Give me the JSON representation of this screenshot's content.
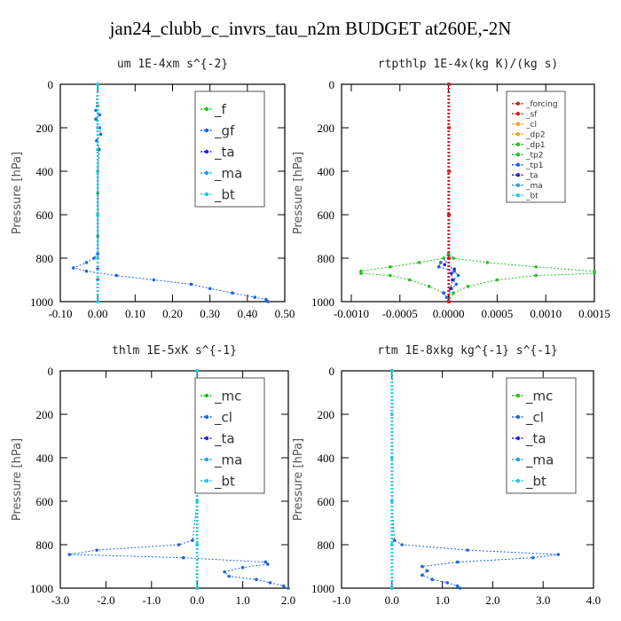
{
  "title": "jan24_clubb_c_invrs_tau_n2m  BUDGET at260E,-2N",
  "colors": {
    "green": "#22c022",
    "blue": "#1e64e0",
    "red": "#d42020",
    "cyan": "#22c8e6",
    "orange": "#f0a020"
  },
  "chart_data": [
    {
      "type": "line",
      "title": "um  1E-4xm s^{-2}",
      "ylabel": "Pressure [hPa]",
      "xlim": [
        -0.1,
        0.5
      ],
      "ylim": [
        1000,
        0
      ],
      "xticks": [
        "-0.10",
        "0.00",
        "0.10",
        "0.20",
        "0.30",
        "0.40",
        "0.50"
      ],
      "xtick_values": [
        -0.1,
        0.0,
        0.1,
        0.2,
        0.3,
        0.4,
        0.5
      ],
      "yticks": [
        "0",
        "200",
        "400",
        "600",
        "800",
        "1000"
      ],
      "ytick_values": [
        0,
        200,
        400,
        600,
        800,
        1000
      ],
      "legend": {
        "labels": [
          "_f",
          "_gf",
          "_ta",
          "_ma",
          "_bt"
        ],
        "colors": [
          "#22c022",
          "#1e64e0",
          "#2222dd",
          "#22a0e0",
          "#22c8e6"
        ],
        "position": "top-right",
        "font": 15
      },
      "series": [
        {
          "name": "_f",
          "color": "#22c022",
          "y": [
            0,
            100,
            200,
            300,
            400,
            500,
            600,
            700,
            800,
            900,
            1000
          ],
          "x": [
            0,
            0,
            0,
            0,
            0,
            0,
            0,
            0,
            0,
            0,
            0
          ]
        },
        {
          "name": "_gf",
          "color": "#1e64e0",
          "y": [
            0,
            120,
            140,
            160,
            200,
            230,
            260,
            300,
            400,
            600,
            780,
            800,
            820,
            845,
            860,
            880,
            900,
            920,
            940,
            960,
            980,
            990,
            1000
          ],
          "x": [
            0,
            -0.005,
            0.005,
            -0.005,
            0.005,
            0.008,
            -0.003,
            0.004,
            0,
            0,
            0,
            -0.01,
            -0.03,
            -0.065,
            -0.03,
            0.05,
            0.15,
            0.25,
            0.3,
            0.36,
            0.42,
            0.45,
            0.455
          ]
        },
        {
          "name": "_ta",
          "color": "#2222dd",
          "y": [
            0,
            200,
            400,
            600,
            800,
            850,
            900,
            1000
          ],
          "x": [
            0,
            0,
            0,
            0,
            0,
            0,
            0,
            0
          ]
        },
        {
          "name": "_ma",
          "color": "#22a0e0",
          "y": [
            0,
            200,
            400,
            600,
            800,
            1000
          ],
          "x": [
            0,
            0,
            0,
            0,
            0,
            0
          ]
        },
        {
          "name": "_bt",
          "color": "#22c8e6",
          "y": [
            0,
            200,
            400,
            600,
            800,
            1000
          ],
          "x": [
            0,
            0,
            0,
            0,
            0,
            0
          ]
        }
      ]
    },
    {
      "type": "line",
      "title": "rtpthlp  1E-4x(kg K)/(kg s)",
      "ylabel": "Pressure [hPa]",
      "xlim": [
        -0.0011,
        0.0015
      ],
      "ylim": [
        1000,
        0
      ],
      "xticks": [
        "-0.0010",
        "-0.0005",
        "0.0000",
        "0.0005",
        "0.0010",
        "0.0015"
      ],
      "xtick_values": [
        -0.001,
        -0.0005,
        0.0,
        0.0005,
        0.001,
        0.0015
      ],
      "yticks": [
        "0",
        "200",
        "400",
        "600",
        "800",
        "1000"
      ],
      "ytick_values": [
        0,
        200,
        400,
        600,
        800,
        1000
      ],
      "legend": {
        "labels": [
          "_forcing",
          "_sf",
          "_cl",
          "_dp2",
          "_dp1",
          "_tp2",
          "_tp1",
          "_ta",
          "_ma",
          "_bt"
        ],
        "colors": [
          "#d42020",
          "#d42020",
          "#f0a020",
          "#f0a020",
          "#22c022",
          "#22c022",
          "#1e64e0",
          "#2222dd",
          "#22a0e0",
          "#22c8e6"
        ],
        "position": "top-right",
        "font": 9
      },
      "series": [
        {
          "name": "_tp2",
          "color": "#22c022",
          "y": [
            0,
            780,
            800,
            820,
            840,
            860,
            870,
            880,
            900,
            930,
            960,
            1000
          ],
          "x": [
            0,
            0,
            5e-05,
            0.0004,
            0.0009,
            0.0015,
            0.0015,
            0.0009,
            0.0005,
            0.0002,
            5e-05,
            0
          ]
        },
        {
          "name": "_dp1",
          "color": "#22c022",
          "y": [
            0,
            780,
            800,
            820,
            840,
            860,
            870,
            880,
            900,
            930,
            960,
            1000
          ],
          "x": [
            0,
            0,
            -5e-05,
            -0.0003,
            -0.0006,
            -0.0009,
            -0.0009,
            -0.0006,
            -0.0004,
            -0.0002,
            -5e-05,
            0
          ]
        },
        {
          "name": "_tp1",
          "color": "#1e64e0",
          "y": [
            0,
            800,
            820,
            840,
            860,
            880,
            900,
            920,
            940,
            960,
            980,
            1000
          ],
          "x": [
            0,
            0,
            -8e-05,
            -0.0001,
            6e-05,
            0.0001,
            5e-05,
            8e-05,
            3e-05,
            -5e-05,
            -2e-05,
            0
          ]
        },
        {
          "name": "_ta",
          "color": "#2222dd",
          "y": [
            0,
            800,
            830,
            850,
            870,
            900,
            940,
            1000
          ],
          "x": [
            0,
            0,
            -4e-05,
            6e-05,
            3e-05,
            4e-05,
            2e-05,
            0
          ]
        },
        {
          "name": "_forcing",
          "color": "#d42020",
          "y": [
            0,
            200,
            400,
            600,
            800,
            1000
          ],
          "x": [
            0,
            0,
            0,
            0,
            0,
            0
          ]
        },
        {
          "name": "_sf",
          "color": "#d42020",
          "y": [
            0,
            200,
            400,
            600,
            800,
            1000
          ],
          "x": [
            1e-05,
            1e-05,
            1e-05,
            1e-05,
            1e-05,
            1e-05
          ]
        }
      ]
    },
    {
      "type": "line",
      "title": "thlm  1E-5xK  s^{-1}",
      "ylabel": "Pressure [hPa]",
      "xlim": [
        -3.0,
        2.0
      ],
      "ylim": [
        1000,
        0
      ],
      "xticks": [
        "-3.0",
        "-2.0",
        "-1.0",
        "0.0",
        "1.0",
        "2.0"
      ],
      "xtick_values": [
        -3,
        -2,
        -1,
        0,
        1,
        2
      ],
      "yticks": [
        "0",
        "200",
        "400",
        "600",
        "800",
        "1000"
      ],
      "ytick_values": [
        0,
        200,
        400,
        600,
        800,
        1000
      ],
      "legend": {
        "labels": [
          "_mc",
          "_cl",
          "_ta",
          "_ma",
          "_bt"
        ],
        "colors": [
          "#22c022",
          "#1e64e0",
          "#2222dd",
          "#22a0e0",
          "#22c8e6"
        ],
        "position": "top-right",
        "font": 15
      },
      "series": [
        {
          "name": "_mc",
          "color": "#22c022",
          "y": [
            0,
            200,
            400,
            600,
            800,
            1000
          ],
          "x": [
            0,
            0,
            0,
            0,
            0,
            0
          ]
        },
        {
          "name": "_cl",
          "color": "#1e64e0",
          "y": [
            0,
            600,
            780,
            800,
            825,
            845,
            860,
            880,
            890,
            905,
            925,
            945,
            960,
            975,
            990,
            1000
          ],
          "x": [
            0,
            0,
            -0.1,
            -0.4,
            -2.2,
            -2.8,
            -0.3,
            1.5,
            1.55,
            1.0,
            0.6,
            0.7,
            1.3,
            1.6,
            1.9,
            2.0
          ]
        },
        {
          "name": "_ta",
          "color": "#2222dd",
          "y": [
            0,
            200,
            400,
            600,
            800,
            1000
          ],
          "x": [
            0,
            0,
            0,
            0,
            0,
            0
          ]
        },
        {
          "name": "_bt",
          "color": "#22c8e6",
          "y": [
            0,
            200,
            400,
            600,
            800,
            1000
          ],
          "x": [
            0,
            0,
            0,
            0,
            0,
            0
          ]
        }
      ]
    },
    {
      "type": "line",
      "title": "rtm  1E-8xkg kg^{-1} s^{-1}",
      "ylabel": "Pressure [hPa]",
      "xlim": [
        -1.0,
        4.0
      ],
      "ylim": [
        1000,
        0
      ],
      "xticks": [
        "-1.0",
        "0.0",
        "1.0",
        "2.0",
        "3.0",
        "4.0"
      ],
      "xtick_values": [
        -1,
        0,
        1,
        2,
        3,
        4
      ],
      "yticks": [
        "0",
        "200",
        "400",
        "600",
        "800",
        "1000"
      ],
      "ytick_values": [
        0,
        200,
        400,
        600,
        800,
        1000
      ],
      "legend": {
        "labels": [
          "_mc",
          "_cl",
          "_ta",
          "_ma",
          "_bt"
        ],
        "colors": [
          "#22c022",
          "#1e64e0",
          "#2222dd",
          "#22a0e0",
          "#22c8e6"
        ],
        "position": "top-right",
        "font": 15
      },
      "series": [
        {
          "name": "_mc",
          "color": "#22c022",
          "y": [
            0,
            200,
            400,
            600,
            800,
            1000
          ],
          "x": [
            0,
            0,
            0,
            0,
            0,
            0
          ]
        },
        {
          "name": "_cl",
          "color": "#1e64e0",
          "y": [
            0,
            600,
            780,
            800,
            825,
            845,
            860,
            880,
            900,
            920,
            940,
            960,
            975,
            990,
            1000
          ],
          "x": [
            0,
            0,
            0.05,
            0.2,
            1.5,
            3.3,
            2.8,
            1.3,
            0.6,
            0.7,
            0.6,
            0.8,
            1.1,
            1.3,
            1.35
          ]
        },
        {
          "name": "_ta",
          "color": "#2222dd",
          "y": [
            0,
            200,
            400,
            600,
            800,
            1000
          ],
          "x": [
            0,
            0,
            0,
            0,
            0,
            0
          ]
        },
        {
          "name": "_bt",
          "color": "#22c8e6",
          "y": [
            0,
            200,
            400,
            600,
            800,
            1000
          ],
          "x": [
            0,
            0,
            0,
            0,
            0,
            0
          ]
        }
      ]
    }
  ]
}
